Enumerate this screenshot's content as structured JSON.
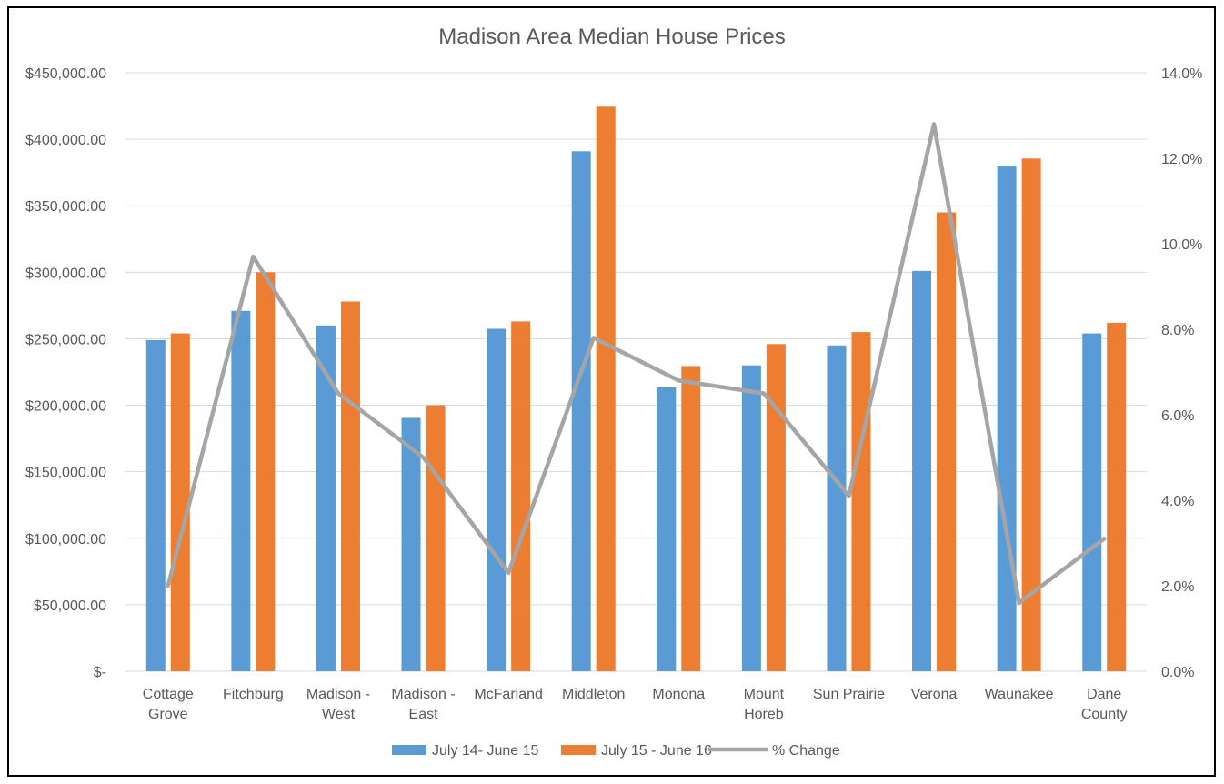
{
  "chart_data": {
    "type": "bar",
    "title": "Madison Area Median House Prices",
    "categories": [
      [
        "Cottage",
        "Grove"
      ],
      [
        "Fitchburg"
      ],
      [
        "Madison -",
        "West"
      ],
      [
        "Madison -",
        "East"
      ],
      [
        "McFarland"
      ],
      [
        "Middleton"
      ],
      [
        "Monona"
      ],
      [
        "Mount",
        "Horeb"
      ],
      [
        "Sun Prairie"
      ],
      [
        "Verona"
      ],
      [
        "Waunakee"
      ],
      [
        "Dane",
        "County"
      ]
    ],
    "series": [
      {
        "name": "July 14- June 15",
        "type": "bar",
        "color": "#5B9BD5",
        "axis": "left",
        "values": [
          249000,
          271000,
          260000,
          190500,
          257500,
          391000,
          213500,
          230000,
          245000,
          301000,
          379500,
          254000
        ]
      },
      {
        "name": "July 15 - June 16",
        "type": "bar",
        "color": "#ED7D31",
        "axis": "left",
        "values": [
          254000,
          300000,
          278000,
          200000,
          263000,
          424500,
          229500,
          246000,
          255000,
          345000,
          385500,
          262000
        ]
      },
      {
        "name": "% Change",
        "type": "line",
        "color": "#A5A5A5",
        "axis": "right",
        "values": [
          0.02,
          0.097,
          0.065,
          0.05,
          0.023,
          0.078,
          0.068,
          0.065,
          0.041,
          0.128,
          0.016,
          0.031
        ]
      }
    ],
    "y_left": {
      "min": 0,
      "max": 450000,
      "step": 50000,
      "tick_labels": [
        "$-",
        "$50,000.00",
        "$100,000.00",
        "$150,000.00",
        "$200,000.00",
        "$250,000.00",
        "$300,000.00",
        "$350,000.00",
        "$400,000.00",
        "$450,000.00"
      ]
    },
    "y_right": {
      "min": 0,
      "max": 0.14,
      "step": 0.02,
      "tick_labels": [
        "0.0%",
        "2.0%",
        "4.0%",
        "6.0%",
        "8.0%",
        "10.0%",
        "12.0%",
        "14.0%"
      ]
    },
    "grid": true,
    "legend_position": "bottom"
  },
  "colors": {
    "gridline": "#D9D9D9",
    "text": "#595959",
    "frame": "#000000"
  }
}
